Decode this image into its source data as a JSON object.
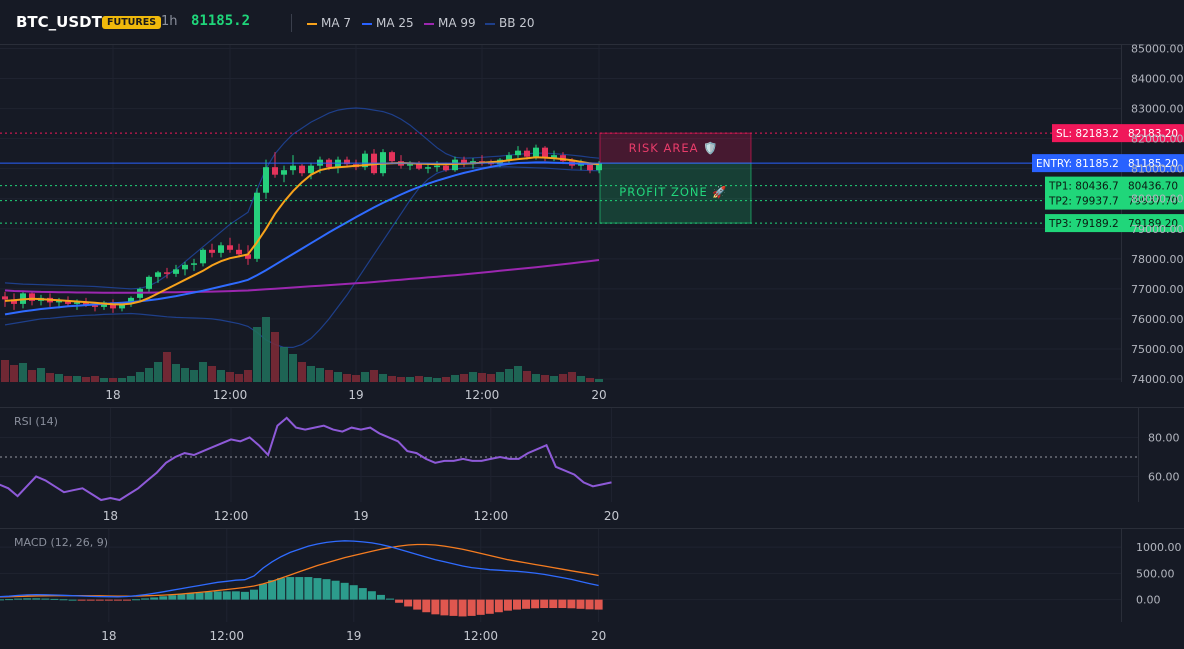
{
  "header": {
    "symbol": "BTC_USDT",
    "badge": "FUTURES",
    "timeframe": "1h",
    "last_price": "81185.2",
    "indicators": [
      {
        "label": "MA 7",
        "color": "#f7a21b"
      },
      {
        "label": "MA 25",
        "color": "#2962ff"
      },
      {
        "label": "MA 99",
        "color": "#9c27b0"
      },
      {
        "label": "BB 20",
        "color": "#1e3f8a"
      }
    ]
  },
  "colors": {
    "up": "#26d07c",
    "down": "#e5335b",
    "ma7": "#f7a21b",
    "ma25": "#2f6bff",
    "ma99": "#9c27b0",
    "bb": "#1e3f8a",
    "sl": "#f0185a",
    "entry": "#2962ff",
    "tp": "#20d67a",
    "rsi": "#8e5ad8",
    "macd": "#2f6bff",
    "signal": "#f57c20",
    "hist_pos": "#2c9c8c",
    "hist_neg": "#e0574f"
  },
  "zones": {
    "risk": "RISK AREA 🛡️",
    "profit": "PROFIT ZONE 🚀"
  },
  "levels": [
    {
      "name": "sl",
      "label": "SL: 82183.2",
      "value_label": "82183.20",
      "price": 82183.2
    },
    {
      "name": "entry",
      "label": "ENTRY: 81185.2",
      "value_label": "81185.20",
      "price": 81185.2
    },
    {
      "name": "tp1",
      "label": "TP1: 80436.7",
      "value_label": "80436.70",
      "price": 80436.7
    },
    {
      "name": "tp2",
      "label": "TP2: 79937.7",
      "value_label": "79937.70",
      "price": 79937.7
    },
    {
      "name": "tp3",
      "label": "TP3: 79189.2",
      "value_label": "79189.20",
      "price": 79189.2
    }
  ],
  "chart_data": [
    {
      "type": "candlestick",
      "title": "BTC_USDT",
      "x_tick_labels": [
        "18",
        "12:00",
        "19",
        "12:00",
        "20"
      ],
      "y_tick_labels": [
        "85000.00",
        "84000.00",
        "83000.00",
        "82000.00",
        "81000.00",
        "80000.00",
        "79000.00",
        "78000.00",
        "77000.00",
        "76000.00",
        "75000.00",
        "74000.00"
      ],
      "ylim": [
        73900,
        85150
      ],
      "grid": true,
      "candles": [
        [
          76750,
          76900,
          76400,
          76650
        ],
        [
          76650,
          76850,
          76300,
          76500
        ],
        [
          76500,
          76950,
          76350,
          76850
        ],
        [
          76850,
          76900,
          76450,
          76600
        ],
        [
          76600,
          76800,
          76450,
          76700
        ],
        [
          76700,
          76850,
          76400,
          76550
        ],
        [
          76550,
          76700,
          76350,
          76600
        ],
        [
          76600,
          76750,
          76400,
          76500
        ],
        [
          76500,
          76650,
          76300,
          76550
        ],
        [
          76550,
          76700,
          76400,
          76450
        ],
        [
          76450,
          76550,
          76250,
          76400
        ],
        [
          76400,
          76600,
          76300,
          76550
        ],
        [
          76550,
          76650,
          76200,
          76350
        ],
        [
          76350,
          76550,
          76250,
          76500
        ],
        [
          76500,
          76750,
          76400,
          76700
        ],
        [
          76700,
          77050,
          76600,
          77000
        ],
        [
          77000,
          77450,
          76900,
          77400
        ],
        [
          77400,
          77600,
          77200,
          77550
        ],
        [
          77550,
          77700,
          77350,
          77500
        ],
        [
          77500,
          77800,
          77400,
          77650
        ],
        [
          77650,
          77900,
          77450,
          77800
        ],
        [
          77800,
          78000,
          77600,
          77850
        ],
        [
          77850,
          78350,
          77750,
          78300
        ],
        [
          78300,
          78500,
          78050,
          78200
        ],
        [
          78200,
          78550,
          78050,
          78450
        ],
        [
          78450,
          78700,
          78200,
          78300
        ],
        [
          78300,
          78500,
          78050,
          78150
        ],
        [
          78150,
          78450,
          77800,
          78000
        ],
        [
          78000,
          80350,
          77900,
          80200
        ],
        [
          80200,
          81300,
          80000,
          81050
        ],
        [
          81050,
          81550,
          80700,
          80800
        ],
        [
          80800,
          81100,
          80550,
          80950
        ],
        [
          80950,
          81450,
          80800,
          81100
        ],
        [
          81100,
          81150,
          80750,
          80850
        ],
        [
          80850,
          81200,
          80650,
          81100
        ],
        [
          81100,
          81400,
          80850,
          81300
        ],
        [
          81300,
          81350,
          80950,
          81050
        ],
        [
          81050,
          81400,
          80850,
          81300
        ],
        [
          81300,
          81400,
          81050,
          81150
        ],
        [
          81150,
          81300,
          80950,
          81050
        ],
        [
          81050,
          81600,
          80950,
          81500
        ],
        [
          81500,
          81650,
          80800,
          80850
        ],
        [
          80850,
          81650,
          80750,
          81550
        ],
        [
          81550,
          81600,
          81150,
          81250
        ],
        [
          81250,
          81450,
          81000,
          81100
        ],
        [
          81100,
          81250,
          80950,
          81150
        ],
        [
          81150,
          81250,
          80950,
          81000
        ],
        [
          81000,
          81150,
          80850,
          81050
        ],
        [
          81050,
          81250,
          80900,
          81100
        ],
        [
          81100,
          81200,
          80900,
          80950
        ],
        [
          80950,
          81400,
          80900,
          81300
        ],
        [
          81300,
          81400,
          81050,
          81150
        ],
        [
          81150,
          81350,
          81000,
          81250
        ],
        [
          81250,
          81450,
          81100,
          81200
        ],
        [
          81200,
          81300,
          81050,
          81150
        ],
        [
          81150,
          81350,
          81050,
          81300
        ],
        [
          81300,
          81550,
          81150,
          81450
        ],
        [
          81450,
          81750,
          81350,
          81600
        ],
        [
          81600,
          81700,
          81300,
          81400
        ],
        [
          81400,
          81800,
          81300,
          81700
        ],
        [
          81700,
          81750,
          81250,
          81350
        ],
        [
          81350,
          81600,
          81250,
          81450
        ],
        [
          81450,
          81550,
          81150,
          81250
        ],
        [
          81250,
          81350,
          81000,
          81100
        ],
        [
          81100,
          81300,
          80950,
          81150
        ],
        [
          81150,
          81200,
          80850,
          80950
        ],
        [
          80950,
          81250,
          80850,
          81185
        ]
      ],
      "ma7": [
        76600,
        76620,
        76650,
        76670,
        76660,
        76640,
        76620,
        76600,
        76580,
        76560,
        76540,
        76510,
        76490,
        76480,
        76510,
        76580,
        76700,
        76850,
        77000,
        77150,
        77300,
        77450,
        77600,
        77780,
        77920,
        78020,
        78080,
        78150,
        78550,
        79000,
        79500,
        79900,
        80250,
        80550,
        80800,
        80950,
        81020,
        81050,
        81070,
        81100,
        81120,
        81150,
        81170,
        81180,
        81190,
        81180,
        81170,
        81160,
        81150,
        81150,
        81160,
        81170,
        81180,
        81200,
        81220,
        81240,
        81280,
        81320,
        81350,
        81380,
        81370,
        81350,
        81320,
        81280,
        81230,
        81180,
        81150
      ],
      "ma25": [
        76150,
        76200,
        76250,
        76290,
        76330,
        76360,
        76390,
        76420,
        76440,
        76460,
        76480,
        76500,
        76520,
        76540,
        76560,
        76590,
        76620,
        76660,
        76710,
        76760,
        76820,
        76880,
        76940,
        77010,
        77080,
        77150,
        77220,
        77300,
        77450,
        77620,
        77800,
        77980,
        78160,
        78340,
        78520,
        78700,
        78880,
        79050,
        79220,
        79390,
        79550,
        79710,
        79860,
        80000,
        80140,
        80270,
        80390,
        80500,
        80600,
        80690,
        80780,
        80860,
        80930,
        81000,
        81060,
        81120,
        81160,
        81190,
        81200,
        81210,
        81210,
        81200,
        81190,
        81180,
        81170,
        81160,
        81150
      ],
      "ma99": [
        76950,
        76930,
        76920,
        76910,
        76900,
        76895,
        76890,
        76885,
        76880,
        76878,
        76875,
        76873,
        76871,
        76870,
        76870,
        76872,
        76875,
        76880,
        76885,
        76890,
        76895,
        76900,
        76905,
        76910,
        76915,
        76925,
        76935,
        76945,
        76965,
        76985,
        77005,
        77025,
        77045,
        77065,
        77085,
        77105,
        77125,
        77145,
        77165,
        77185,
        77205,
        77230,
        77255,
        77280,
        77305,
        77330,
        77355,
        77380,
        77405,
        77430,
        77455,
        77480,
        77510,
        77540,
        77570,
        77600,
        77630,
        77660,
        77690,
        77720,
        77750,
        77785,
        77820,
        77855,
        77890,
        77925,
        77960
      ],
      "bb_upper": [
        77200,
        77180,
        77160,
        77150,
        77140,
        77130,
        77120,
        77110,
        77100,
        77090,
        77080,
        77060,
        77040,
        77020,
        77000,
        77020,
        77100,
        77250,
        77450,
        77650,
        77900,
        78150,
        78400,
        78650,
        78900,
        79150,
        79350,
        79550,
        80300,
        81000,
        81500,
        81850,
        82150,
        82350,
        82550,
        82700,
        82850,
        82950,
        83000,
        83020,
        83000,
        82950,
        82900,
        82800,
        82650,
        82450,
        82200,
        81950,
        81700,
        81500,
        81380,
        81350,
        81360,
        81380,
        81400,
        81420,
        81450,
        81480,
        81500,
        81520,
        81520,
        81500,
        81480,
        81450,
        81420,
        81380,
        81350
      ],
      "bb_lower": [
        75800,
        75850,
        75900,
        75950,
        76000,
        76020,
        76050,
        76080,
        76100,
        76120,
        76130,
        76150,
        76160,
        76170,
        76180,
        76160,
        76130,
        76100,
        76070,
        76050,
        76040,
        76030,
        76020,
        76000,
        75960,
        75900,
        75840,
        75750,
        75550,
        75300,
        75150,
        75050,
        75050,
        75150,
        75350,
        75650,
        76000,
        76400,
        76800,
        77250,
        77700,
        78150,
        78600,
        79050,
        79500,
        79950,
        80350,
        80650,
        80850,
        80950,
        81000,
        81020,
        81030,
        81040,
        81050,
        81060,
        81060,
        81050,
        81040,
        81030,
        81020,
        81000,
        80980,
        80960,
        80950,
        80940,
        80930
      ],
      "volume": [
        22,
        17,
        19,
        12,
        14,
        9,
        8,
        6,
        6,
        5,
        6,
        4,
        4,
        4,
        6,
        10,
        14,
        20,
        30,
        18,
        14,
        12,
        20,
        16,
        12,
        10,
        8,
        12,
        55,
        65,
        50,
        35,
        28,
        20,
        16,
        14,
        12,
        10,
        8,
        7,
        10,
        12,
        8,
        6,
        5,
        5,
        6,
        5,
        4,
        5,
        7,
        8,
        10,
        9,
        8,
        10,
        13,
        16,
        11,
        8,
        7,
        6,
        8,
        10,
        6,
        4,
        3
      ]
    },
    {
      "type": "line",
      "title": "RSI (14)",
      "x_tick_labels": [
        "18",
        "12:00",
        "19",
        "12:00",
        "20"
      ],
      "y_tick_labels": [
        "80.00",
        "60.00"
      ],
      "ylim": [
        48,
        93
      ],
      "reference_line": 70,
      "values": [
        56,
        54,
        50,
        55,
        60,
        58,
        55,
        52,
        53,
        54,
        51,
        48,
        49,
        48,
        51,
        54,
        58,
        62,
        67,
        70,
        72,
        71,
        73,
        75,
        77,
        79,
        78,
        80,
        76,
        71,
        86,
        90,
        85,
        84,
        85,
        86,
        84,
        83,
        85,
        84,
        85,
        82,
        80,
        78,
        73,
        72,
        69,
        67,
        68,
        68,
        69,
        68,
        68,
        69,
        70,
        69,
        69,
        72,
        74,
        76,
        65,
        63,
        61,
        57,
        55,
        56,
        57
      ]
    },
    {
      "type": "line",
      "title": "MACD (12, 26, 9)",
      "x_tick_labels": [
        "18",
        "12:00",
        "19",
        "12:00",
        "20"
      ],
      "y_tick_labels": [
        "1000.00",
        "500.00",
        "0.00"
      ],
      "ylim": [
        -350,
        1250
      ],
      "macd": [
        55,
        65,
        80,
        90,
        95,
        92,
        88,
        82,
        75,
        70,
        62,
        58,
        55,
        52,
        60,
        75,
        95,
        120,
        150,
        180,
        210,
        240,
        270,
        300,
        330,
        350,
        370,
        380,
        450,
        600,
        720,
        820,
        900,
        960,
        1020,
        1060,
        1090,
        1110,
        1120,
        1115,
        1100,
        1080,
        1050,
        1010,
        960,
        910,
        860,
        810,
        760,
        720,
        680,
        640,
        610,
        590,
        570,
        560,
        550,
        540,
        525,
        505,
        480,
        450,
        420,
        385,
        345,
        305,
        270
      ],
      "signal": [
        50,
        55,
        60,
        65,
        70,
        72,
        74,
        75,
        75,
        74,
        73,
        72,
        70,
        68,
        67,
        68,
        72,
        78,
        86,
        96,
        108,
        122,
        138,
        155,
        174,
        193,
        212,
        232,
        260,
        300,
        350,
        410,
        470,
        530,
        590,
        650,
        700,
        750,
        800,
        840,
        880,
        920,
        960,
        990,
        1020,
        1040,
        1050,
        1050,
        1040,
        1020,
        990,
        960,
        920,
        880,
        840,
        800,
        760,
        730,
        700,
        670,
        640,
        610,
        580,
        550,
        520,
        490,
        460
      ],
      "histogram": [
        5,
        10,
        20,
        25,
        25,
        20,
        14,
        7,
        0,
        -4,
        -11,
        -14,
        -15,
        -16,
        -7,
        7,
        23,
        42,
        64,
        84,
        102,
        118,
        132,
        145,
        156,
        157,
        158,
        148,
        190,
        300,
        370,
        410,
        430,
        430,
        430,
        410,
        390,
        360,
        320,
        275,
        220,
        160,
        90,
        20,
        -60,
        -130,
        -190,
        -240,
        -280,
        -300,
        -310,
        -320,
        -310,
        -290,
        -270,
        -240,
        -210,
        -190,
        -175,
        -165,
        -160,
        -160,
        -160,
        -165,
        -175,
        -185,
        -190
      ]
    }
  ]
}
